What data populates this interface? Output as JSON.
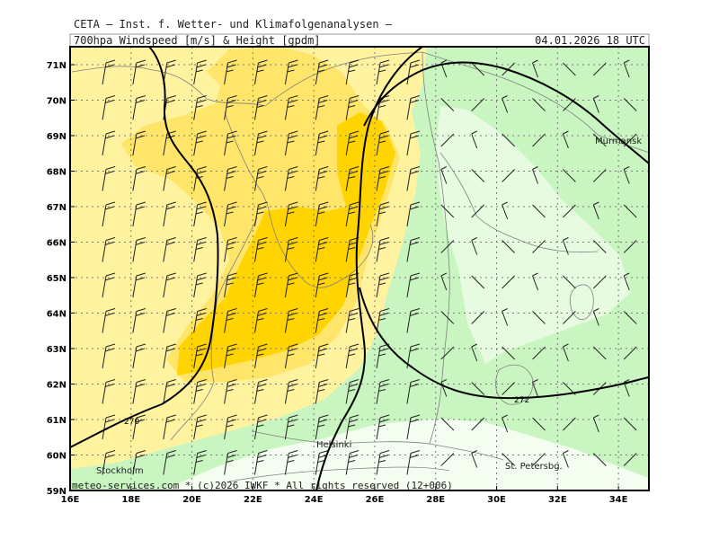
{
  "header": {
    "line1": "CETA — Inst. f. Wetter- und Klimafolgenanalysen —",
    "subtitle": "700hpa_Windspeed_[m/s]_&_Height_[gpdm]",
    "timestamp": "04.01.2026  18 UTC"
  },
  "lat_labels": [
    "71N",
    "70N",
    "69N",
    "68N",
    "67N",
    "66N",
    "65N",
    "64N",
    "63N",
    "62N",
    "61N",
    "60N",
    "59N"
  ],
  "lon_labels": [
    "16E",
    "18E",
    "20E",
    "22E",
    "24E",
    "26E",
    "28E",
    "30E",
    "32E",
    "34E"
  ],
  "contour_labels": [
    "270",
    "272"
  ],
  "cities": [
    "Murmansk",
    "Helsinki",
    "Stockholm",
    "St. Petersbg."
  ],
  "footer": "meteo-services.com * (c)2026 IWKF * All rights reserved (12+006)",
  "colors": {
    "green_light": "#c8f5c0",
    "green_pale": "#e6fbe0",
    "green_palest": "#f3fdf0",
    "yellow_light": "#fff3a0",
    "yellow_med": "#ffe66a",
    "gold": "#ffd400",
    "contour": "#000000",
    "grid": "#7a7a7a",
    "coast": "#808080"
  }
}
